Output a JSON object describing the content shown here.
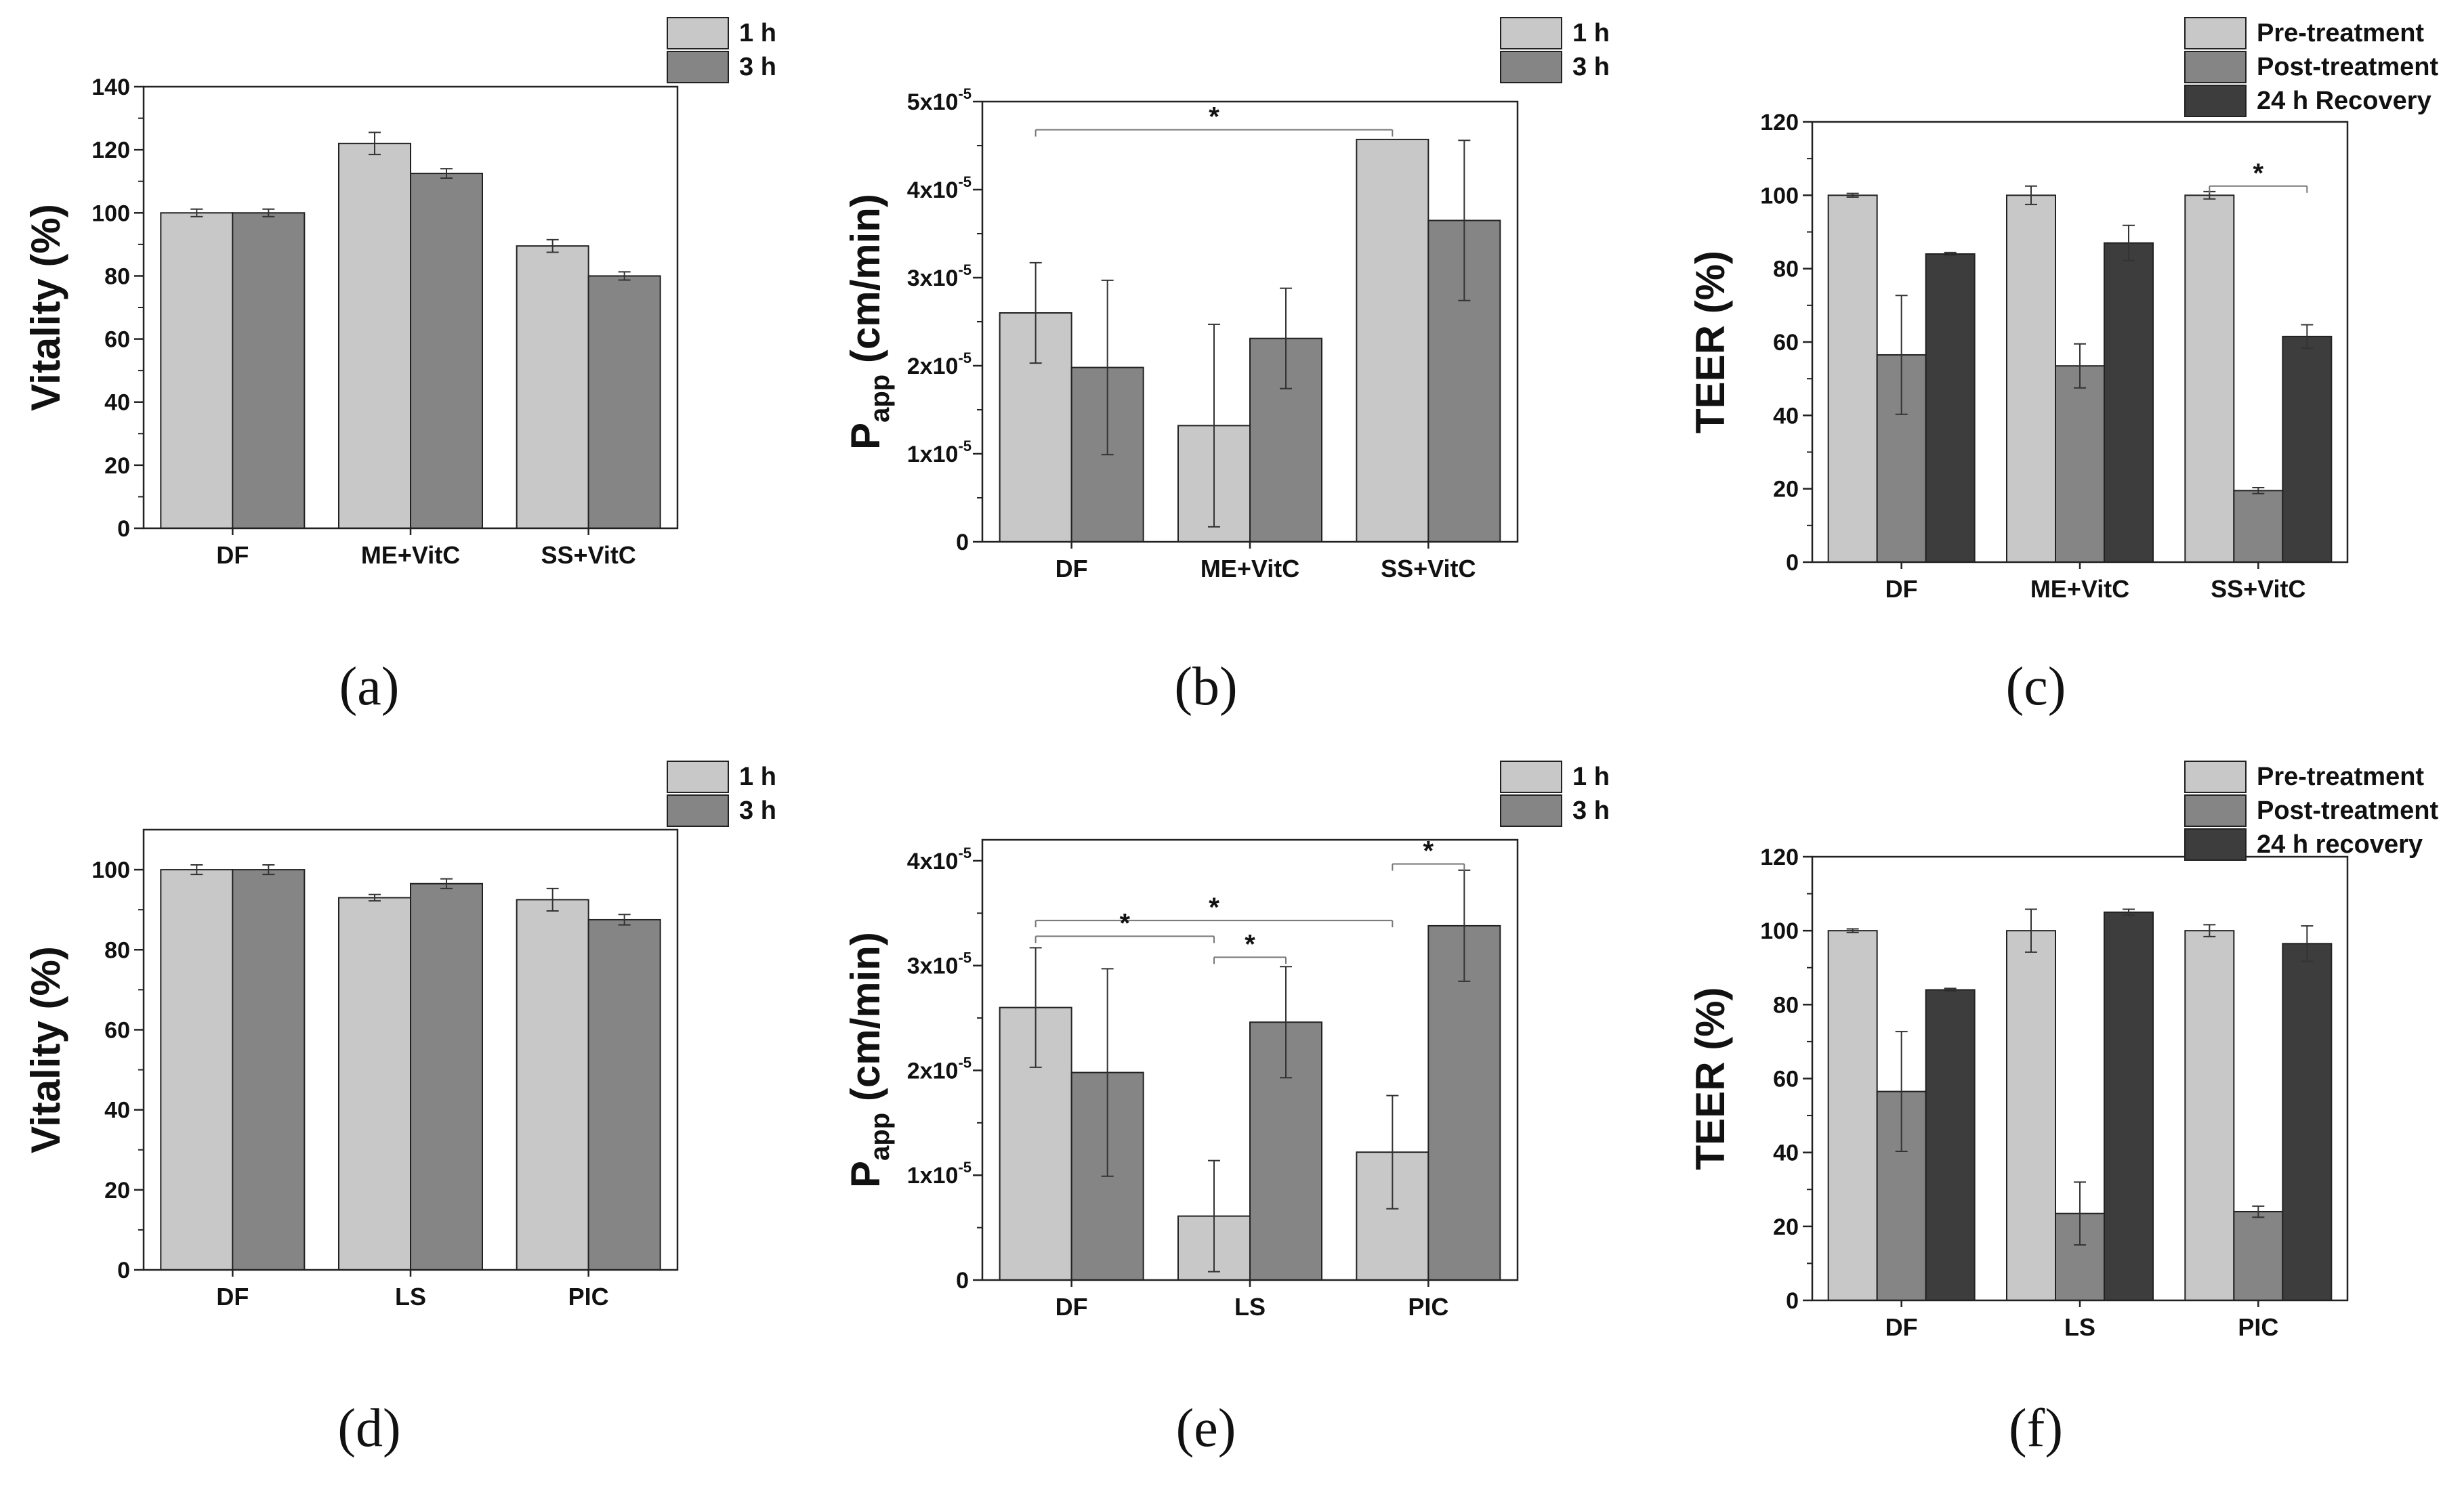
{
  "chart_data": [
    {
      "id": "a",
      "panel_label": "(a)",
      "type": "bar",
      "ylabel": "Vitality (%)",
      "ylim": [
        0,
        140
      ],
      "yticks": [
        0,
        20,
        40,
        60,
        80,
        100,
        120,
        140
      ],
      "categories": [
        "DF",
        "ME+VitC",
        "SS+VitC"
      ],
      "series": [
        {
          "name": "1 h",
          "color": "#c8c8c8",
          "values": [
            100,
            122,
            89.5
          ],
          "errors": [
            1.2,
            3.5,
            2.0
          ]
        },
        {
          "name": "3 h",
          "color": "#858585",
          "values": [
            100,
            112.5,
            80
          ],
          "errors": [
            1.2,
            1.5,
            1.3
          ]
        }
      ],
      "significance": []
    },
    {
      "id": "b",
      "panel_label": "(b)",
      "type": "bar",
      "ylabel": "Papp (cm/min)",
      "ylabel_main": "P",
      "ylabel_sub": "app",
      "ylabel_rest": " (cm/min)",
      "ylim": [
        0,
        5e-05
      ],
      "yticks": [
        0,
        1e-05,
        2e-05,
        3e-05,
        4e-05,
        5e-05
      ],
      "ytick_labels": [
        "0",
        "1x10",
        "2x10",
        "3x10",
        "4x10",
        "5x10"
      ],
      "ytick_exp": "-5",
      "categories": [
        "DF",
        "ME+VitC",
        "SS+VitC"
      ],
      "series": [
        {
          "name": "1 h",
          "color": "#c8c8c8",
          "values": [
            2.6e-05,
            1.32e-05,
            4.57e-05
          ],
          "errors": [
            5.7e-06,
            1.15e-05,
            0
          ]
        },
        {
          "name": "3 h",
          "color": "#858585",
          "values": [
            1.98e-05,
            2.31e-05,
            3.65e-05
          ],
          "errors": [
            9.9e-06,
            5.7e-06,
            9.1e-06
          ]
        }
      ],
      "significance": [
        {
          "from_cat": 0,
          "from_series": 0,
          "to_cat": 2,
          "to_series": 0,
          "y": 4.68e-05,
          "label": "*"
        }
      ]
    },
    {
      "id": "c",
      "panel_label": "(c)",
      "type": "bar",
      "ylabel": "TEER (%)",
      "ylim": [
        0,
        120
      ],
      "yticks": [
        0,
        20,
        40,
        60,
        80,
        100,
        120
      ],
      "categories": [
        "DF",
        "ME+VitC",
        "SS+VitC"
      ],
      "series": [
        {
          "name": "Pre-treatment",
          "color": "#c8c8c8",
          "values": [
            100,
            100,
            100
          ],
          "errors": [
            0.5,
            2.5,
            1.0
          ]
        },
        {
          "name": "Post-treatment",
          "color": "#858585",
          "values": [
            56.5,
            53.5,
            19.5
          ],
          "errors": [
            16.2,
            6.0,
            0.8
          ]
        },
        {
          "name": "24 h Recovery",
          "color": "#3d3d3d",
          "values": [
            84,
            87,
            61.5
          ],
          "errors": [
            0.4,
            4.8,
            3.2
          ]
        }
      ],
      "significance": [
        {
          "from_cat": 2,
          "from_series": 0,
          "to_cat": 2,
          "to_series": 2,
          "y": 102.5,
          "label": "*"
        }
      ]
    },
    {
      "id": "d",
      "panel_label": "(d)",
      "type": "bar",
      "ylabel": "Vitality (%)",
      "ylim": [
        0,
        110
      ],
      "yticks": [
        0,
        20,
        40,
        60,
        80,
        100
      ],
      "categories": [
        "DF",
        "LS",
        "PIC"
      ],
      "series": [
        {
          "name": "1 h",
          "color": "#c8c8c8",
          "values": [
            100,
            93,
            92.5
          ],
          "errors": [
            1.2,
            0.8,
            2.8
          ]
        },
        {
          "name": "3 h",
          "color": "#858585",
          "values": [
            100,
            96.5,
            87.5
          ],
          "errors": [
            1.2,
            1.2,
            1.3
          ]
        }
      ],
      "significance": []
    },
    {
      "id": "e",
      "panel_label": "(e)",
      "type": "bar",
      "ylabel": "Papp (cm/min)",
      "ylabel_main": "P",
      "ylabel_sub": "app",
      "ylabel_rest": " (cm/min)",
      "ylim": [
        0,
        4.2e-05
      ],
      "yticks": [
        0,
        1e-05,
        2e-05,
        3e-05,
        4e-05
      ],
      "ytick_labels": [
        "0",
        "1x10",
        "2x10",
        "3x10",
        "4x10"
      ],
      "ytick_exp": "-5",
      "categories": [
        "DF",
        "LS",
        "PIC"
      ],
      "series": [
        {
          "name": "1 h",
          "color": "#c8c8c8",
          "values": [
            2.6e-05,
            6.1e-06,
            1.22e-05
          ],
          "errors": [
            5.7e-06,
            5.3e-06,
            5.4e-06
          ]
        },
        {
          "name": "3 h",
          "color": "#858585",
          "values": [
            1.98e-05,
            2.46e-05,
            3.38e-05
          ],
          "errors": [
            9.9e-06,
            5.3e-06,
            5.3e-06
          ]
        }
      ],
      "significance": [
        {
          "from_cat": 0,
          "from_series": 0,
          "to_cat": 2,
          "to_series": 0,
          "y": 3.43e-05,
          "label": "*"
        },
        {
          "from_cat": 0,
          "from_series": 0,
          "to_cat": 1,
          "to_series": 0,
          "y": 3.28e-05,
          "label": "*"
        },
        {
          "from_cat": 1,
          "from_series": 0,
          "to_cat": 1,
          "to_series": 1,
          "y": 3.08e-05,
          "label": "*"
        },
        {
          "from_cat": 2,
          "from_series": 0,
          "to_cat": 2,
          "to_series": 1,
          "y": 3.97e-05,
          "label": "*"
        }
      ]
    },
    {
      "id": "f",
      "panel_label": "(f)",
      "type": "bar",
      "ylabel": "TEER (%)",
      "ylim": [
        0,
        120
      ],
      "yticks": [
        0,
        20,
        40,
        60,
        80,
        100,
        120
      ],
      "categories": [
        "DF",
        "LS",
        "PIC"
      ],
      "series": [
        {
          "name": "Pre-treatment",
          "color": "#c8c8c8",
          "values": [
            100,
            100,
            100
          ],
          "errors": [
            0.5,
            5.8,
            1.6
          ]
        },
        {
          "name": "Post-treatment",
          "color": "#858585",
          "values": [
            56.5,
            23.5,
            24
          ],
          "errors": [
            16.2,
            8.5,
            1.5
          ]
        },
        {
          "name": "24 h recovery",
          "color": "#3d3d3d",
          "values": [
            84,
            105,
            96.5
          ],
          "errors": [
            0.4,
            0.8,
            4.8
          ]
        }
      ],
      "significance": []
    }
  ]
}
